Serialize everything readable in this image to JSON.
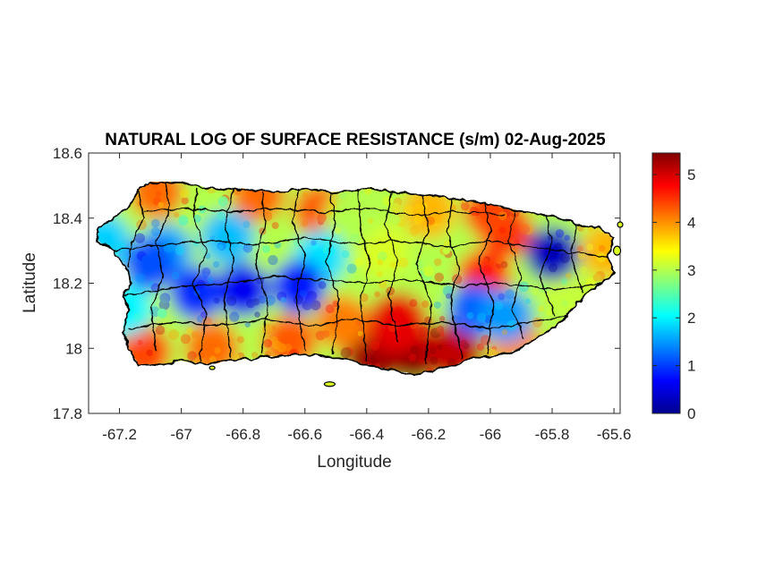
{
  "title": "NATURAL LOG OF SURFACE RESISTANCE (s/m) 02-Aug-2025",
  "xlabel": "Longitude",
  "ylabel": "Latitude",
  "map": {
    "region": "Puerto Rico",
    "xlim": [
      -67.3,
      -65.58
    ],
    "ylim": [
      17.8,
      18.6
    ],
    "x_ticks": [
      -67.2,
      -67,
      -66.8,
      -66.6,
      -66.4,
      -66.2,
      -66,
      -65.8,
      -65.6
    ],
    "x_tick_labels": [
      "-67.2",
      "-67",
      "-66.8",
      "-66.6",
      "-66.4",
      "-66.2",
      "-66",
      "-65.8",
      "-65.6"
    ],
    "y_ticks": [
      17.8,
      18,
      18.2,
      18.4,
      18.6
    ],
    "y_tick_labels": [
      "17.8",
      "18",
      "18.2",
      "18.4",
      "18.6"
    ],
    "colormap": "jet",
    "colorbar": {
      "range": [
        0,
        5.45
      ],
      "ticks": [
        0,
        1,
        2,
        3,
        4,
        5
      ],
      "tick_labels": [
        "0",
        "1",
        "2",
        "3",
        "4",
        "5"
      ],
      "colors": [
        "#00008f",
        "#0000ff",
        "#0080ff",
        "#00ffff",
        "#80ff80",
        "#ffff00",
        "#ff8000",
        "#ff0000",
        "#800000"
      ]
    },
    "field_features": [
      {
        "lon": -66.25,
        "lat": 17.99,
        "value": 5.4
      },
      {
        "lon": -66.38,
        "lat": 17.98,
        "value": 5.3
      },
      {
        "lon": -66.12,
        "lat": 17.99,
        "value": 5.1
      },
      {
        "lon": -66.3,
        "lat": 18.08,
        "value": 4.9
      },
      {
        "lon": -66.02,
        "lat": 18.22,
        "value": 4.6
      },
      {
        "lon": -65.95,
        "lat": 18.36,
        "value": 4.5
      },
      {
        "lon": -66.0,
        "lat": 18.42,
        "value": 4.4
      },
      {
        "lon": -66.55,
        "lat": 18.42,
        "value": 4.3
      },
      {
        "lon": -66.75,
        "lat": 18.47,
        "value": 4.2
      },
      {
        "lon": -67.08,
        "lat": 18.48,
        "value": 4.2
      },
      {
        "lon": -67.12,
        "lat": 17.99,
        "value": 4.4
      },
      {
        "lon": -66.9,
        "lat": 18.0,
        "value": 4.2
      },
      {
        "lon": -66.65,
        "lat": 18.02,
        "value": 4.3
      },
      {
        "lon": -66.48,
        "lat": 18.08,
        "value": 4.1
      },
      {
        "lon": -65.92,
        "lat": 18.02,
        "value": 4.0
      },
      {
        "lon": -65.62,
        "lat": 18.3,
        "value": 3.8
      },
      {
        "lon": -66.2,
        "lat": 18.42,
        "value": 3.8
      },
      {
        "lon": -66.35,
        "lat": 18.3,
        "value": 3.2
      },
      {
        "lon": -66.45,
        "lat": 18.4,
        "value": 3.0
      },
      {
        "lon": -65.75,
        "lat": 18.18,
        "value": 3.1
      },
      {
        "lon": -67.18,
        "lat": 18.12,
        "value": 2.0
      },
      {
        "lon": -67.05,
        "lat": 18.3,
        "value": 1.6
      },
      {
        "lon": -66.55,
        "lat": 18.28,
        "value": 1.9
      },
      {
        "lon": -66.85,
        "lat": 18.34,
        "value": 1.7
      },
      {
        "lon": -67.25,
        "lat": 18.33,
        "value": 1.8
      },
      {
        "lon": -66.8,
        "lat": 18.18,
        "value": 0.6
      },
      {
        "lon": -66.95,
        "lat": 18.17,
        "value": 0.9
      },
      {
        "lon": -66.62,
        "lat": 18.19,
        "value": 0.8
      },
      {
        "lon": -67.1,
        "lat": 18.26,
        "value": 1.1
      },
      {
        "lon": -65.8,
        "lat": 18.29,
        "value": 0.3
      },
      {
        "lon": -66.05,
        "lat": 18.12,
        "value": 1.2
      },
      {
        "lon": -65.95,
        "lat": 18.1,
        "value": 1.5
      }
    ]
  }
}
